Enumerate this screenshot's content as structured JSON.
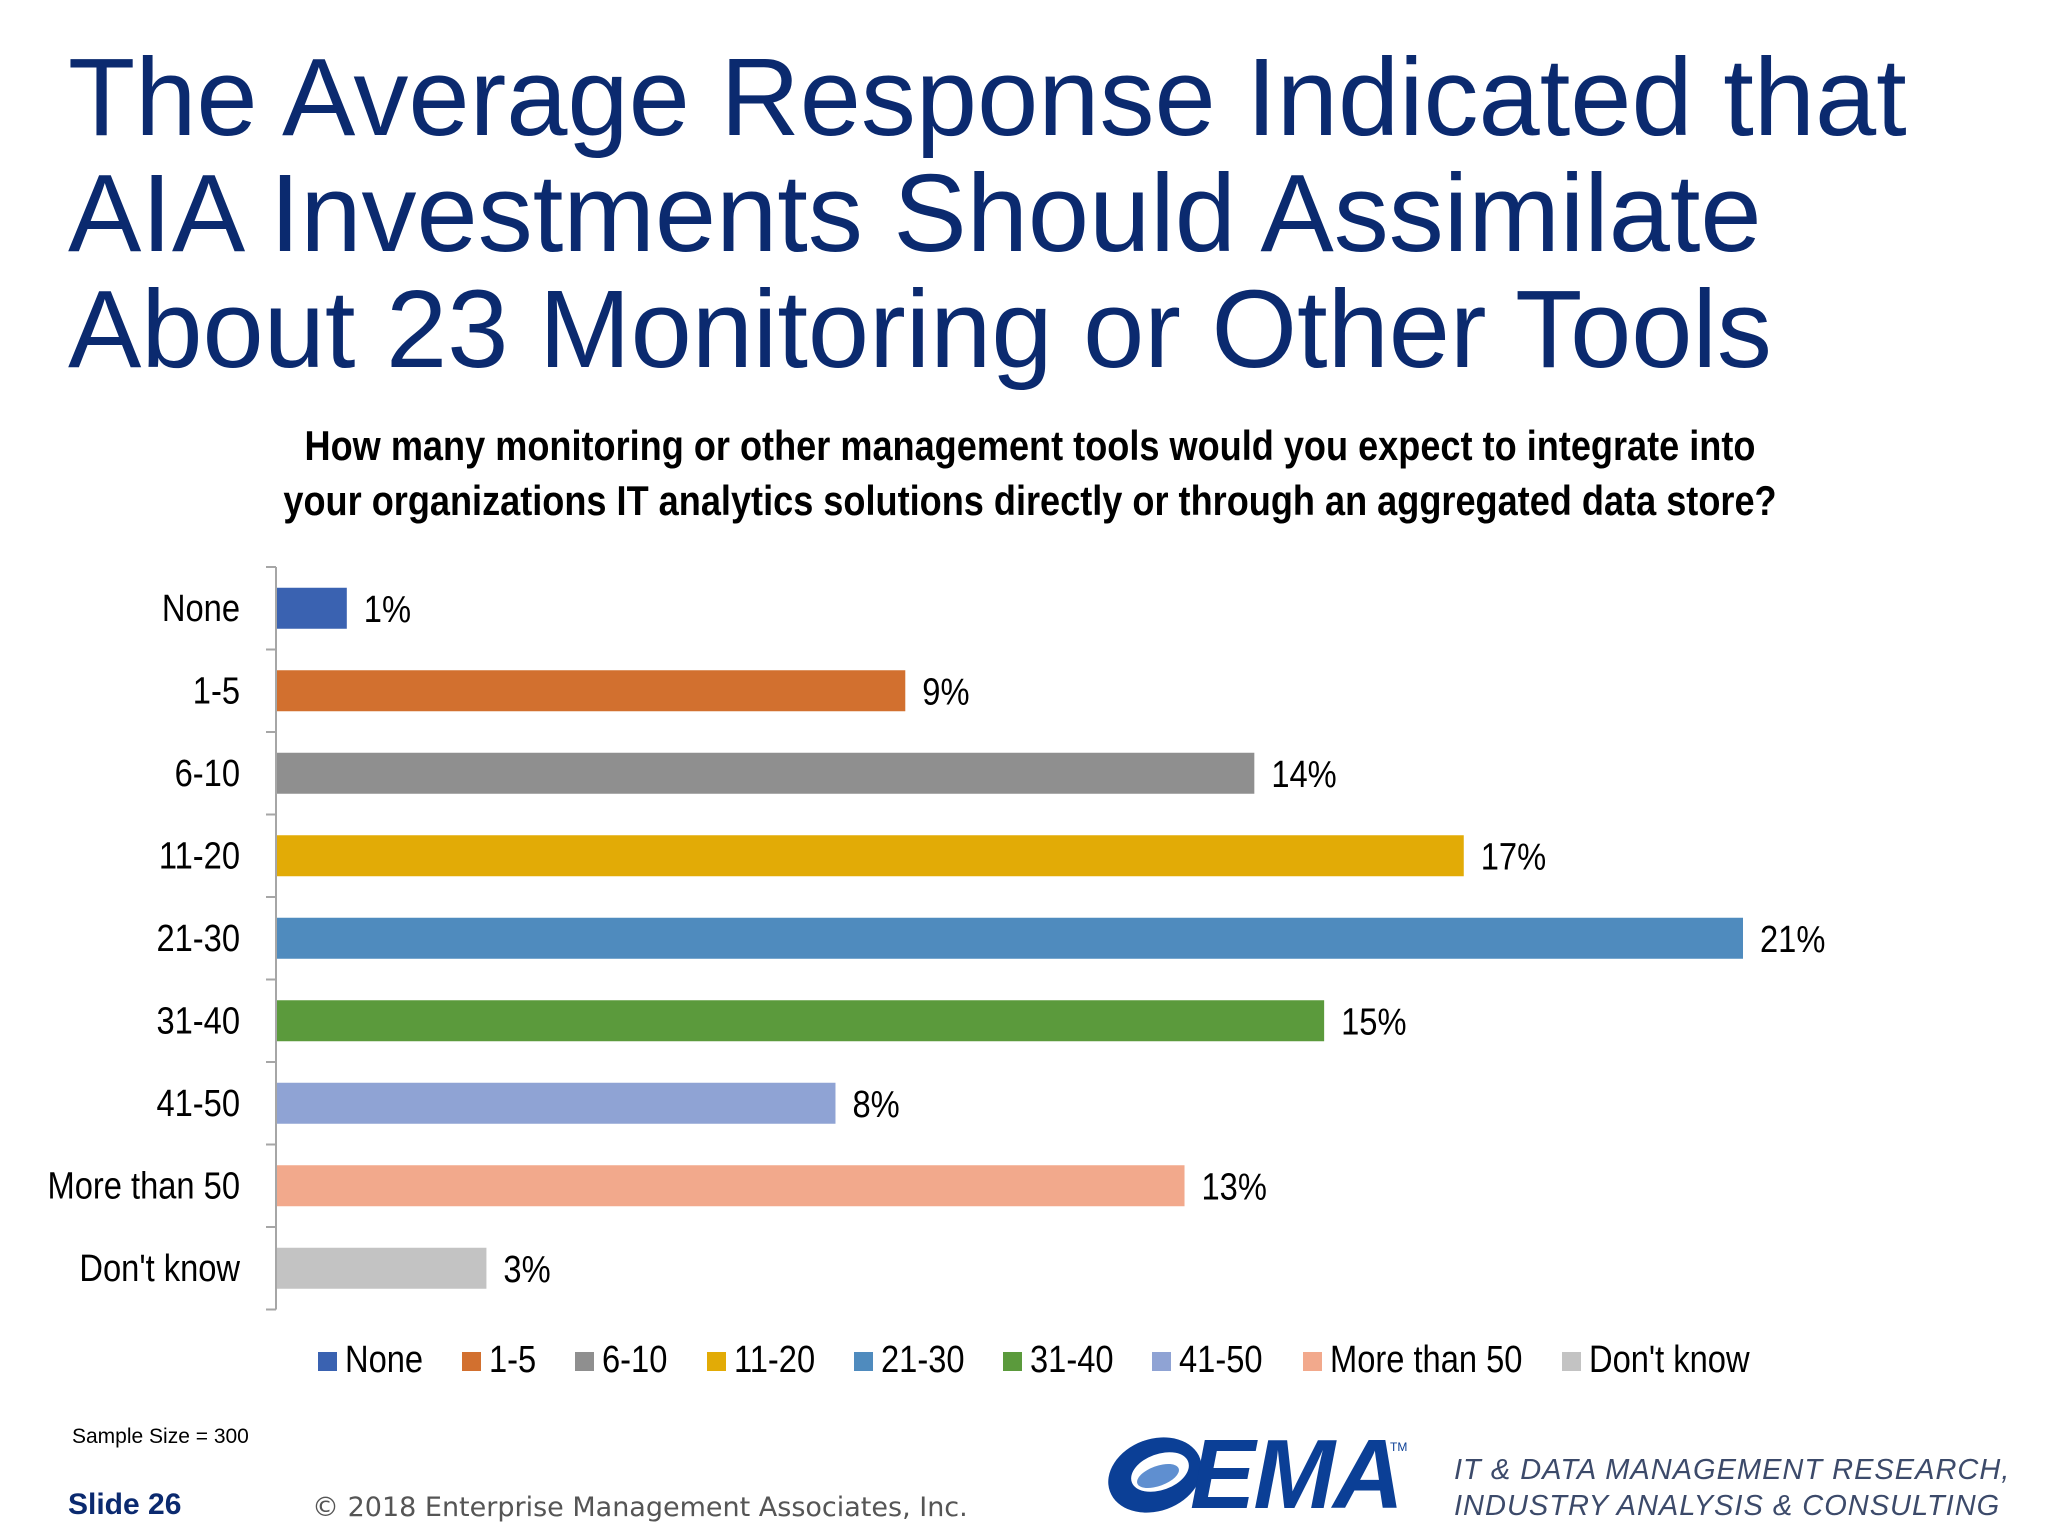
{
  "slide": {
    "title_lines": [
      "The Average Response Indicated that",
      "AIA Investments Should Assimilate",
      "About 23 Monitoring or Other Tools"
    ],
    "question_lines": [
      "How many monitoring or other management tools would you expect to integrate into",
      "your organizations IT analytics solutions directly or through an aggregated data store?"
    ],
    "sample_size": "Sample Size = 300",
    "slide_number": "Slide 26",
    "copyright": "© 2018 Enterprise Management Associates, Inc.",
    "logo_text": "EMA",
    "logo_tm": "TM",
    "tagline_lines": [
      "IT & DATA MANAGEMENT RESEARCH,",
      "INDUSTRY ANALYSIS & CONSULTING"
    ]
  },
  "chart_data": {
    "type": "bar",
    "orientation": "horizontal",
    "categories": [
      "None",
      "1-5",
      "6-10",
      "11-20",
      "21-30",
      "31-40",
      "41-50",
      "More than 50",
      "Don't know"
    ],
    "values": [
      1,
      9,
      14,
      17,
      21,
      15,
      8,
      13,
      3
    ],
    "value_labels": [
      "1%",
      "9%",
      "14%",
      "17%",
      "21%",
      "15%",
      "8%",
      "13%",
      "3%"
    ],
    "colors": [
      "#3a62b1",
      "#d2702f",
      "#8f8f8f",
      "#e2ab06",
      "#4f8bbe",
      "#5b9a3c",
      "#8fa3d4",
      "#f2a98c",
      "#c3c3c3"
    ],
    "legend": [
      "None",
      "1-5",
      "6-10",
      "11-20",
      "21-30",
      "31-40",
      "41-50",
      "More than 50",
      "Don't know"
    ],
    "legend_position": "bottom",
    "xlim": [
      0,
      21
    ],
    "grid": false
  }
}
